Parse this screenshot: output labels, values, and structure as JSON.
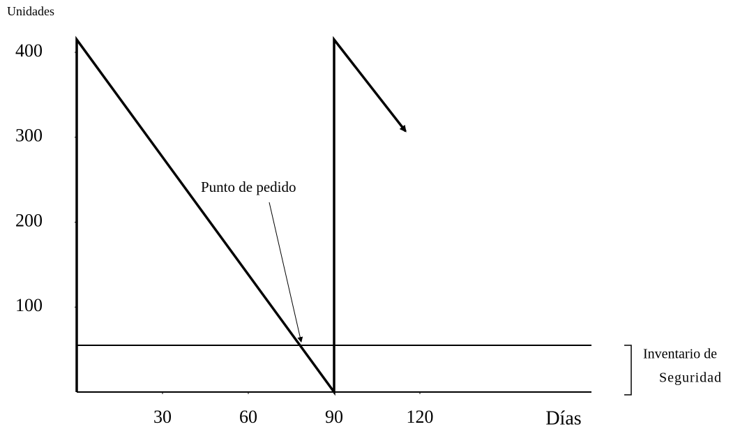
{
  "chart_data": {
    "type": "line",
    "y_label": "Unidades",
    "x_label": "Días",
    "xlim": [
      0,
      180
    ],
    "ylim": [
      0,
      400
    ],
    "xticks": [
      30,
      60,
      90,
      120
    ],
    "yticks": [
      100,
      200,
      300,
      400
    ],
    "series": [
      {
        "color": "#000000",
        "x": [
          0,
          0,
          90,
          90,
          115
        ],
        "values": [
          0,
          415,
          0,
          415,
          307
        ]
      }
    ],
    "safety_stock": {
      "value": 55,
      "label": [
        "Inventario de",
        "Seguridad"
      ]
    },
    "annotation": {
      "text": "Punto de pedido",
      "x": 78.5,
      "y": 59
    }
  }
}
